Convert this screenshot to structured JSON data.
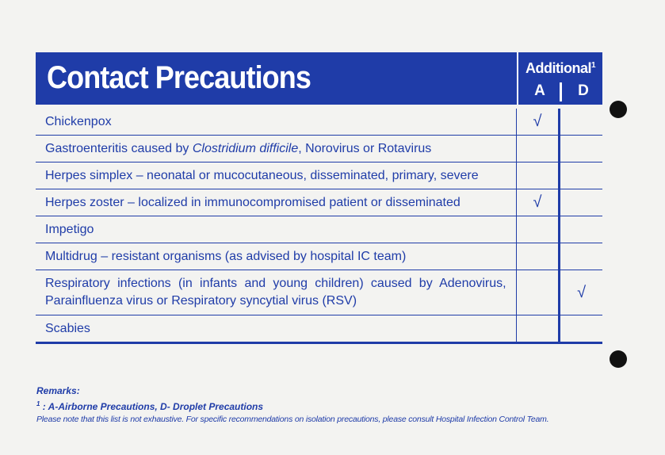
{
  "header": {
    "title": "Contact Precautions",
    "additional": "Additional",
    "additional_note": "1",
    "col_a": "A",
    "col_d": "D"
  },
  "table": {
    "rows": [
      {
        "name": [
          "Chickenpox"
        ],
        "a": "√"
      },
      {
        "name": [
          {
            "text": "Gastroenteritis caused by "
          },
          {
            "text": "Clostridium difficile",
            "italic": true
          },
          {
            "text": ", Norovirus or Rotavirus"
          }
        ]
      },
      {
        "name": [
          "Herpes simplex – neonatal or mucocutaneous, disseminated, primary, severe"
        ]
      },
      {
        "name": [
          "Herpes zoster – localized in immunocompromised patient or disseminated"
        ],
        "a": "√"
      },
      {
        "name": [
          "Impetigo"
        ]
      },
      {
        "name": [
          "Multidrug – resistant organisms (as advised by hospital IC team)"
        ]
      },
      {
        "name": [
          "Respiratory infections (in infants and young children) caused by Adenovirus, Parainfluenza virus or Respiratory syncytial virus (RSV)"
        ],
        "d": "√"
      },
      {
        "name": [
          "Scabies"
        ]
      }
    ]
  },
  "remarks": {
    "heading": "Remarks:",
    "footnote_mark": "1",
    "footnote": " : A-Airborne Precautions, D- Droplet Precautions",
    "note": "Please note that this list is not exhaustive. For specific recommendations on isolation precautions, please consult Hospital Infection Control Team."
  }
}
